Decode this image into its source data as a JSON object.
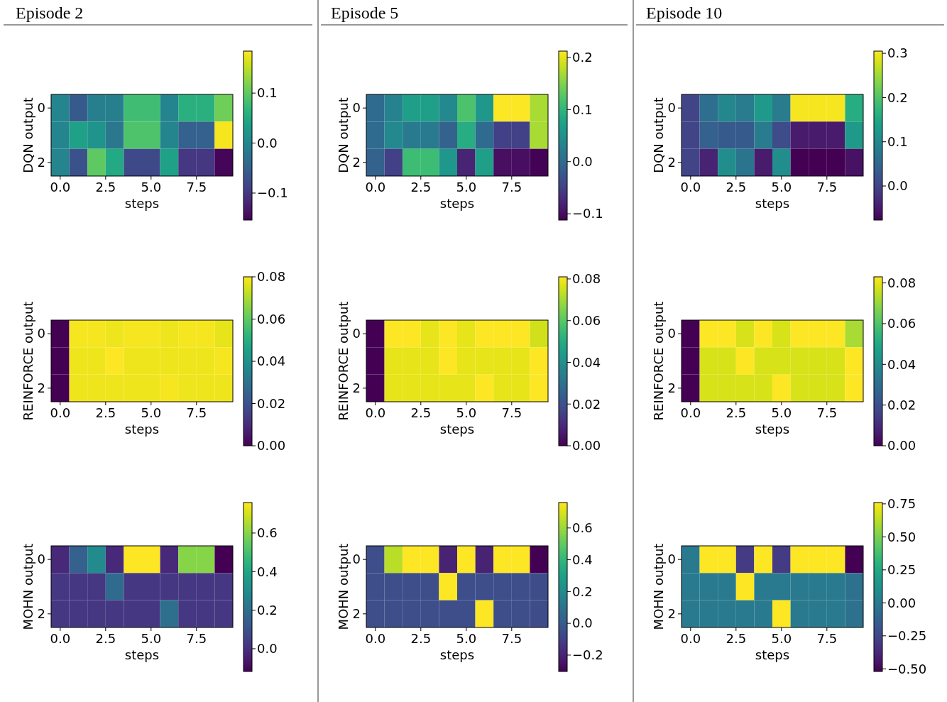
{
  "chart_data": [
    {
      "type": "heatmap",
      "title": "Episode 2",
      "xlabel": "steps",
      "ylabel": "DQN output",
      "x": [
        0,
        1,
        2,
        3,
        4,
        5,
        6,
        7,
        8,
        9
      ],
      "y_categories": [
        "0",
        null,
        "2"
      ],
      "xlim": [
        -0.5,
        9.5
      ],
      "xticks": [
        {
          "value": 0,
          "label": "0.0"
        },
        {
          "value": 2.5,
          "label": "2.5"
        },
        {
          "value": 5,
          "label": "5.0"
        },
        {
          "value": 7.5,
          "label": "7.5"
        }
      ],
      "cells": [
        [
          0.0,
          -0.06,
          -0.01,
          -0.01,
          0.08,
          0.08,
          0.0,
          0.06,
          0.06,
          0.11
        ],
        [
          0.0,
          0.04,
          0.02,
          -0.02,
          0.09,
          0.09,
          0.0,
          -0.05,
          -0.05,
          0.18
        ],
        [
          0.0,
          -0.07,
          0.1,
          0.05,
          -0.08,
          -0.08,
          0.04,
          -0.1,
          -0.1,
          -0.15
        ]
      ],
      "clim": [
        -0.154,
        0.184
      ],
      "cticks": [
        {
          "value": -0.1,
          "label": "−0.1"
        },
        {
          "value": 0,
          "label": "0.0"
        },
        {
          "value": 0.1,
          "label": "0.1"
        }
      ]
    },
    {
      "type": "heatmap",
      "title": "Episode 5",
      "xlabel": "steps",
      "ylabel": "DQN output",
      "x": [
        0,
        1,
        2,
        3,
        4,
        5,
        6,
        7,
        8,
        9
      ],
      "y_categories": [
        "0",
        null,
        "2"
      ],
      "xlim": [
        -0.5,
        9.5
      ],
      "xticks": [
        {
          "value": 0,
          "label": "0.0"
        },
        {
          "value": 2.5,
          "label": "2.5"
        },
        {
          "value": 5,
          "label": "5.0"
        },
        {
          "value": 7.5,
          "label": "7.5"
        }
      ],
      "cells": [
        [
          0.0,
          0.03,
          0.07,
          0.07,
          0.04,
          0.12,
          0.06,
          0.21,
          0.21,
          0.17
        ],
        [
          0.0,
          0.04,
          0.02,
          0.02,
          -0.01,
          0.09,
          0.0,
          -0.05,
          -0.05,
          0.17
        ],
        [
          -0.01,
          -0.05,
          0.11,
          0.11,
          0.06,
          -0.08,
          0.07,
          -0.1,
          -0.1,
          -0.11
        ]
      ],
      "clim": [
        -0.112,
        0.212
      ],
      "cticks": [
        {
          "value": -0.1,
          "label": "−0.1"
        },
        {
          "value": 0,
          "label": "0.0"
        },
        {
          "value": 0.1,
          "label": "0.1"
        },
        {
          "value": 0.2,
          "label": "0.2"
        }
      ]
    },
    {
      "type": "heatmap",
      "title": "Episode 10",
      "xlabel": "steps",
      "ylabel": "DQN output",
      "x": [
        0,
        1,
        2,
        3,
        4,
        5,
        6,
        7,
        8,
        9
      ],
      "y_categories": [
        "0",
        null,
        "2"
      ],
      "xlim": [
        -0.5,
        9.5
      ],
      "xticks": [
        {
          "value": 0,
          "label": "0.0"
        },
        {
          "value": 2.5,
          "label": "2.5"
        },
        {
          "value": 5,
          "label": "5.0"
        },
        {
          "value": 7.5,
          "label": "7.5"
        }
      ],
      "cells": [
        [
          0.0,
          0.06,
          0.1,
          0.08,
          0.13,
          0.08,
          0.3,
          0.3,
          0.3,
          0.16
        ],
        [
          0.0,
          0.04,
          0.03,
          0.03,
          0.08,
          0.01,
          -0.05,
          -0.05,
          -0.05,
          0.13
        ],
        [
          0.0,
          -0.04,
          0.11,
          0.07,
          -0.05,
          0.11,
          -0.08,
          -0.08,
          -0.08,
          -0.06
        ]
      ],
      "clim": [
        -0.077,
        0.305
      ],
      "cticks": [
        {
          "value": 0,
          "label": "0.0"
        },
        {
          "value": 0.1,
          "label": "0.1"
        },
        {
          "value": 0.2,
          "label": "0.2"
        },
        {
          "value": 0.3,
          "label": "0.3"
        }
      ]
    },
    {
      "type": "heatmap",
      "xlabel": "steps",
      "ylabel": "REINFORCE output",
      "x": [
        0,
        1,
        2,
        3,
        4,
        5,
        6,
        7,
        8,
        9
      ],
      "y_categories": [
        "0",
        null,
        "2"
      ],
      "xlim": [
        -0.5,
        9.5
      ],
      "xticks": [
        {
          "value": 0,
          "label": "0.0"
        },
        {
          "value": 2.5,
          "label": "2.5"
        },
        {
          "value": 5,
          "label": "5.0"
        },
        {
          "value": 7.5,
          "label": "7.5"
        }
      ],
      "cells": [
        [
          0.0,
          0.079,
          0.079,
          0.078,
          0.079,
          0.079,
          0.078,
          0.079,
          0.079,
          0.077
        ],
        [
          0.0,
          0.078,
          0.078,
          0.08,
          0.078,
          0.078,
          0.078,
          0.078,
          0.078,
          0.079
        ],
        [
          0.0,
          0.078,
          0.078,
          0.078,
          0.078,
          0.078,
          0.079,
          0.078,
          0.078,
          0.078
        ]
      ],
      "clim": [
        0,
        0.08
      ],
      "cticks": [
        {
          "value": 0,
          "label": "0.00"
        },
        {
          "value": 0.02,
          "label": "0.02"
        },
        {
          "value": 0.04,
          "label": "0.04"
        },
        {
          "value": 0.06,
          "label": "0.06"
        },
        {
          "value": 0.08,
          "label": "0.08"
        }
      ]
    },
    {
      "type": "heatmap",
      "xlabel": "steps",
      "ylabel": "REINFORCE output",
      "x": [
        0,
        1,
        2,
        3,
        4,
        5,
        6,
        7,
        8,
        9
      ],
      "y_categories": [
        "0",
        null,
        "2"
      ],
      "xlim": [
        -0.5,
        9.5
      ],
      "xticks": [
        {
          "value": 0,
          "label": "0.0"
        },
        {
          "value": 2.5,
          "label": "2.5"
        },
        {
          "value": 5,
          "label": "5.0"
        },
        {
          "value": 7.5,
          "label": "7.5"
        }
      ],
      "cells": [
        [
          0.0,
          0.081,
          0.081,
          0.078,
          0.081,
          0.078,
          0.081,
          0.081,
          0.081,
          0.075
        ],
        [
          0.0,
          0.078,
          0.078,
          0.078,
          0.081,
          0.078,
          0.078,
          0.078,
          0.078,
          0.081
        ],
        [
          0.0,
          0.078,
          0.078,
          0.078,
          0.078,
          0.078,
          0.081,
          0.078,
          0.078,
          0.081
        ]
      ],
      "clim": [
        0,
        0.081
      ],
      "cticks": [
        {
          "value": 0,
          "label": "0.00"
        },
        {
          "value": 0.02,
          "label": "0.02"
        },
        {
          "value": 0.04,
          "label": "0.04"
        },
        {
          "value": 0.06,
          "label": "0.06"
        },
        {
          "value": 0.08,
          "label": "0.08"
        }
      ]
    },
    {
      "type": "heatmap",
      "xlabel": "steps",
      "ylabel": "REINFORCE output",
      "x": [
        0,
        1,
        2,
        3,
        4,
        5,
        6,
        7,
        8,
        9
      ],
      "y_categories": [
        "0",
        null,
        "2"
      ],
      "xlim": [
        -0.5,
        9.5
      ],
      "xticks": [
        {
          "value": 0,
          "label": "0.0"
        },
        {
          "value": 2.5,
          "label": "2.5"
        },
        {
          "value": 5,
          "label": "5.0"
        },
        {
          "value": 7.5,
          "label": "7.5"
        }
      ],
      "cells": [
        [
          0.0,
          0.083,
          0.083,
          0.078,
          0.083,
          0.078,
          0.083,
          0.083,
          0.083,
          0.072
        ],
        [
          0.0,
          0.078,
          0.078,
          0.083,
          0.078,
          0.078,
          0.078,
          0.078,
          0.078,
          0.083
        ],
        [
          0.0,
          0.078,
          0.078,
          0.078,
          0.078,
          0.083,
          0.078,
          0.078,
          0.078,
          0.083
        ]
      ],
      "clim": [
        0,
        0.083
      ],
      "cticks": [
        {
          "value": 0,
          "label": "0.00"
        },
        {
          "value": 0.02,
          "label": "0.02"
        },
        {
          "value": 0.04,
          "label": "0.04"
        },
        {
          "value": 0.06,
          "label": "0.06"
        },
        {
          "value": 0.08,
          "label": "0.08"
        }
      ]
    },
    {
      "type": "heatmap",
      "xlabel": "steps",
      "ylabel": "MOHN output",
      "x": [
        0,
        1,
        2,
        3,
        4,
        5,
        6,
        7,
        8,
        9
      ],
      "y_categories": [
        "0",
        null,
        "2"
      ],
      "xlim": [
        -0.5,
        9.5
      ],
      "xticks": [
        {
          "value": 0,
          "label": "0.0"
        },
        {
          "value": 2.5,
          "label": "2.5"
        },
        {
          "value": 5,
          "label": "5.0"
        },
        {
          "value": 7.5,
          "label": "7.5"
        }
      ],
      "cells": [
        [
          -0.02,
          0.15,
          0.3,
          -0.02,
          0.76,
          0.76,
          -0.02,
          0.6,
          0.6,
          -0.12
        ],
        [
          0.02,
          0.02,
          0.02,
          0.18,
          0.02,
          0.02,
          0.02,
          0.02,
          0.02,
          0.02
        ],
        [
          0.02,
          0.02,
          0.02,
          0.02,
          0.02,
          0.02,
          0.2,
          0.02,
          0.02,
          0.02
        ]
      ],
      "clim": [
        -0.118,
        0.758
      ],
      "cticks": [
        {
          "value": 0,
          "label": "0.0"
        },
        {
          "value": 0.2,
          "label": "0.2"
        },
        {
          "value": 0.4,
          "label": "0.4"
        },
        {
          "value": 0.6,
          "label": "0.6"
        }
      ]
    },
    {
      "type": "heatmap",
      "xlabel": "steps",
      "ylabel": "MOHN output",
      "x": [
        0,
        1,
        2,
        3,
        4,
        5,
        6,
        7,
        8,
        9
      ],
      "y_categories": [
        "0",
        null,
        "2"
      ],
      "xlim": [
        -0.5,
        9.5
      ],
      "xticks": [
        {
          "value": 0,
          "label": "0.0"
        },
        {
          "value": 2.5,
          "label": "2.5"
        },
        {
          "value": 5,
          "label": "5.0"
        },
        {
          "value": 7.5,
          "label": "7.5"
        }
      ],
      "cells": [
        [
          -0.05,
          0.65,
          0.76,
          0.76,
          -0.2,
          0.76,
          -0.2,
          0.76,
          0.76,
          -0.3
        ],
        [
          -0.05,
          -0.05,
          -0.05,
          -0.05,
          0.76,
          -0.05,
          -0.05,
          -0.05,
          -0.05,
          -0.06
        ],
        [
          -0.05,
          -0.05,
          -0.05,
          -0.05,
          -0.05,
          -0.05,
          0.76,
          -0.05,
          -0.05,
          -0.06
        ]
      ],
      "clim": [
        -0.303,
        0.76
      ],
      "cticks": [
        {
          "value": -0.2,
          "label": "−0.2"
        },
        {
          "value": 0,
          "label": "0.0"
        },
        {
          "value": 0.2,
          "label": "0.2"
        },
        {
          "value": 0.4,
          "label": "0.4"
        },
        {
          "value": 0.6,
          "label": "0.6"
        }
      ]
    },
    {
      "type": "heatmap",
      "xlabel": "steps",
      "ylabel": "MOHN output",
      "x": [
        0,
        1,
        2,
        3,
        4,
        5,
        6,
        7,
        8,
        9
      ],
      "y_categories": [
        "0",
        null,
        "2"
      ],
      "xlim": [
        -0.5,
        9.5
      ],
      "xticks": [
        {
          "value": 0,
          "label": "0.0"
        },
        {
          "value": 2.5,
          "label": "2.5"
        },
        {
          "value": 5,
          "label": "5.0"
        },
        {
          "value": 7.5,
          "label": "7.5"
        }
      ],
      "cells": [
        [
          0.0,
          0.76,
          0.76,
          -0.3,
          0.76,
          -0.3,
          0.76,
          0.76,
          0.76,
          -0.52
        ],
        [
          0.0,
          0.0,
          0.0,
          0.76,
          0.0,
          0.0,
          0.0,
          0.0,
          0.0,
          -0.05
        ],
        [
          0.0,
          0.0,
          0.0,
          0.0,
          0.0,
          0.76,
          0.0,
          0.0,
          0.0,
          -0.05
        ]
      ],
      "clim": [
        -0.52,
        0.76
      ],
      "cticks": [
        {
          "value": -0.5,
          "label": "−0.50"
        },
        {
          "value": -0.25,
          "label": "−0.25"
        },
        {
          "value": 0,
          "label": "0.00"
        },
        {
          "value": 0.25,
          "label": "0.25"
        },
        {
          "value": 0.5,
          "label": "0.50"
        },
        {
          "value": 0.75,
          "label": "0.75"
        }
      ]
    }
  ]
}
